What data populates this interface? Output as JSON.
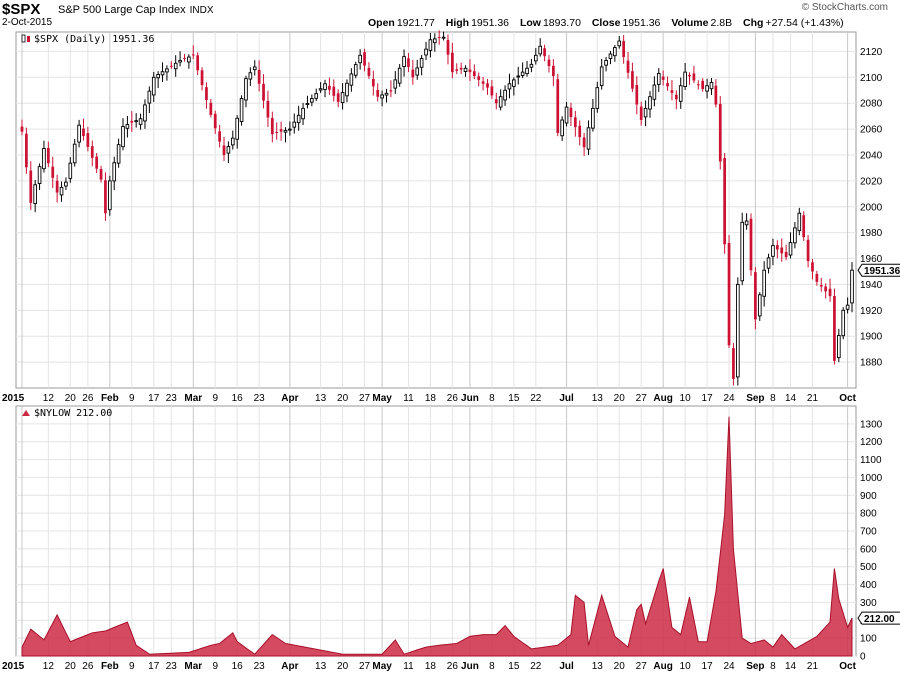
{
  "header": {
    "symbol": "$SPX",
    "name": "S&P 500 Large Cap Index",
    "exchange": "INDX",
    "date": "2-Oct-2015",
    "credit": "© StockCharts.com",
    "open_label": "Open",
    "open": "1921.77",
    "high_label": "High",
    "high": "1951.36",
    "low_label": "Low",
    "low": "1893.70",
    "close_label": "Close",
    "close": "1951.36",
    "volume_label": "Volume",
    "volume": "2.8B",
    "chg_label": "Chg",
    "chg": "+27.54 (+1.43%)"
  },
  "colors": {
    "up": "#000000",
    "down": "#cc1133",
    "area": "#cc2a44",
    "grid": "#e4e4e4"
  },
  "chart_data": [
    {
      "type": "candlestick",
      "legend": "$SPX (Daily) 1951.36",
      "last_value_label": "1951.36",
      "ylim": [
        1860,
        2135
      ],
      "y_ticks": [
        1880,
        1900,
        1920,
        1940,
        1960,
        1980,
        2000,
        2020,
        2040,
        2060,
        2080,
        2100,
        2120
      ],
      "x_labels": [
        "2015",
        "12",
        "20",
        "26",
        "Feb",
        "9",
        "17",
        "23",
        "Mar",
        "9",
        "16",
        "23",
        "Apr",
        "13",
        "20",
        "27",
        "May",
        "11",
        "18",
        "26",
        "Jun",
        "8",
        "15",
        "22",
        "Jul",
        "13",
        "20",
        "27",
        "Aug",
        "10",
        "17",
        "24",
        "Sep",
        "8",
        "14",
        "21",
        "Oct"
      ],
      "close_anchors": [
        [
          "2015-01-02",
          2058
        ],
        [
          "2015-01-06",
          2003
        ],
        [
          "2015-01-09",
          2045
        ],
        [
          "2015-01-14",
          2011
        ],
        [
          "2015-01-16",
          2019
        ],
        [
          "2015-01-22",
          2063
        ],
        [
          "2015-01-29",
          2021
        ],
        [
          "2015-01-30",
          1995
        ],
        [
          "2015-02-02",
          2020
        ],
        [
          "2015-02-05",
          2062
        ],
        [
          "2015-02-11",
          2068
        ],
        [
          "2015-02-17",
          2100
        ],
        [
          "2015-02-25",
          2113
        ],
        [
          "2015-03-02",
          2117
        ],
        [
          "2015-03-06",
          2071
        ],
        [
          "2015-03-11",
          2040
        ],
        [
          "2015-03-13",
          2053
        ],
        [
          "2015-03-18",
          2099
        ],
        [
          "2015-03-20",
          2108
        ],
        [
          "2015-03-26",
          2056
        ],
        [
          "2015-04-01",
          2060
        ],
        [
          "2015-04-07",
          2076
        ],
        [
          "2015-04-14",
          2095
        ],
        [
          "2015-04-17",
          2081
        ],
        [
          "2015-04-24",
          2117
        ],
        [
          "2015-04-30",
          2085
        ],
        [
          "2015-05-05",
          2089
        ],
        [
          "2015-05-08",
          2116
        ],
        [
          "2015-05-12",
          2100
        ],
        [
          "2015-05-18",
          2129
        ],
        [
          "2015-05-21",
          2131
        ],
        [
          "2015-05-26",
          2104
        ],
        [
          "2015-05-29",
          2107
        ],
        [
          "2015-06-05",
          2092
        ],
        [
          "2015-06-09",
          2080
        ],
        [
          "2015-06-12",
          2095
        ],
        [
          "2015-06-19",
          2110
        ],
        [
          "2015-06-23",
          2124
        ],
        [
          "2015-06-26",
          2101
        ],
        [
          "2015-06-29",
          2057
        ],
        [
          "2015-07-01",
          2077
        ],
        [
          "2015-07-08",
          2046
        ],
        [
          "2015-07-10",
          2076
        ],
        [
          "2015-07-14",
          2108
        ],
        [
          "2015-07-20",
          2128
        ],
        [
          "2015-07-24",
          2079
        ],
        [
          "2015-07-27",
          2067
        ],
        [
          "2015-07-31",
          2103
        ],
        [
          "2015-08-06",
          2083
        ],
        [
          "2015-08-10",
          2104
        ],
        [
          "2015-08-14",
          2091
        ],
        [
          "2015-08-18",
          2096
        ],
        [
          "2015-08-19",
          2079
        ],
        [
          "2015-08-20",
          2035
        ],
        [
          "2015-08-21",
          1971
        ],
        [
          "2015-08-24",
          1893
        ],
        [
          "2015-08-25",
          1867
        ],
        [
          "2015-08-26",
          1940
        ],
        [
          "2015-08-27",
          1988
        ],
        [
          "2015-08-28",
          1989
        ],
        [
          "2015-09-01",
          1913
        ],
        [
          "2015-09-03",
          1951
        ],
        [
          "2015-09-08",
          1970
        ],
        [
          "2015-09-11",
          1961
        ],
        [
          "2015-09-16",
          1995
        ],
        [
          "2015-09-18",
          1958
        ],
        [
          "2015-09-22",
          1942
        ],
        [
          "2015-09-25",
          1931
        ],
        [
          "2015-09-28",
          1881
        ],
        [
          "2015-09-30",
          1920
        ],
        [
          "2015-10-01",
          1924
        ],
        [
          "2015-10-02",
          1951
        ]
      ]
    },
    {
      "type": "area",
      "legend": "$NYLOW 212.00",
      "last_value_label": "212.00",
      "ylim": [
        0,
        1400
      ],
      "y_ticks": [
        0,
        100,
        200,
        300,
        400,
        500,
        600,
        700,
        800,
        900,
        1000,
        1100,
        1200,
        1300
      ],
      "x_labels": [
        "2015",
        "12",
        "20",
        "26",
        "Feb",
        "9",
        "17",
        "23",
        "Mar",
        "9",
        "16",
        "23",
        "Apr",
        "13",
        "20",
        "27",
        "May",
        "11",
        "18",
        "26",
        "Jun",
        "8",
        "15",
        "22",
        "Jul",
        "13",
        "20",
        "27",
        "Aug",
        "10",
        "17",
        "24",
        "Sep",
        "8",
        "14",
        "21",
        "Oct"
      ],
      "anchors": [
        [
          "2015-01-02",
          50
        ],
        [
          "2015-01-06",
          150
        ],
        [
          "2015-01-09",
          90
        ],
        [
          "2015-01-14",
          230
        ],
        [
          "2015-01-20",
          80
        ],
        [
          "2015-01-27",
          130
        ],
        [
          "2015-01-30",
          140
        ],
        [
          "2015-02-06",
          190
        ],
        [
          "2015-02-10",
          60
        ],
        [
          "2015-02-13",
          10
        ],
        [
          "2015-02-27",
          20
        ],
        [
          "2015-03-06",
          60
        ],
        [
          "2015-03-10",
          70
        ],
        [
          "2015-03-13",
          130
        ],
        [
          "2015-03-16",
          80
        ],
        [
          "2015-03-20",
          10
        ],
        [
          "2015-03-26",
          120
        ],
        [
          "2015-03-31",
          70
        ],
        [
          "2015-04-03",
          10
        ],
        [
          "2015-04-20",
          10
        ],
        [
          "2015-05-01",
          10
        ],
        [
          "2015-05-06",
          90
        ],
        [
          "2015-05-08",
          10
        ],
        [
          "2015-05-15",
          50
        ],
        [
          "2015-05-20",
          60
        ],
        [
          "2015-05-27",
          70
        ],
        [
          "2015-06-01",
          110
        ],
        [
          "2015-06-04",
          120
        ],
        [
          "2015-06-09",
          120
        ],
        [
          "2015-06-11",
          170
        ],
        [
          "2015-06-15",
          110
        ],
        [
          "2015-06-19",
          40
        ],
        [
          "2015-06-29",
          60
        ],
        [
          "2015-07-02",
          120
        ],
        [
          "2015-07-06",
          340
        ],
        [
          "2015-07-08",
          300
        ],
        [
          "2015-07-09",
          60
        ],
        [
          "2015-07-14",
          340
        ],
        [
          "2015-07-17",
          110
        ],
        [
          "2015-07-22",
          50
        ],
        [
          "2015-07-24",
          260
        ],
        [
          "2015-07-27",
          290
        ],
        [
          "2015-07-28",
          180
        ],
        [
          "2015-07-31",
          420
        ],
        [
          "2015-08-03",
          490
        ],
        [
          "2015-08-05",
          160
        ],
        [
          "2015-08-07",
          120
        ],
        [
          "2015-08-11",
          330
        ],
        [
          "2015-08-13",
          80
        ],
        [
          "2015-08-17",
          80
        ],
        [
          "2015-08-19",
          360
        ],
        [
          "2015-08-21",
          790
        ],
        [
          "2015-08-24",
          1340
        ],
        [
          "2015-08-25",
          600
        ],
        [
          "2015-08-27",
          100
        ],
        [
          "2015-08-31",
          70
        ],
        [
          "2015-09-03",
          90
        ],
        [
          "2015-09-08",
          50
        ],
        [
          "2015-09-10",
          120
        ],
        [
          "2015-09-15",
          40
        ],
        [
          "2015-09-22",
          110
        ],
        [
          "2015-09-25",
          190
        ],
        [
          "2015-09-28",
          490
        ],
        [
          "2015-09-29",
          320
        ],
        [
          "2015-10-01",
          160
        ],
        [
          "2015-10-02",
          212
        ]
      ]
    }
  ]
}
